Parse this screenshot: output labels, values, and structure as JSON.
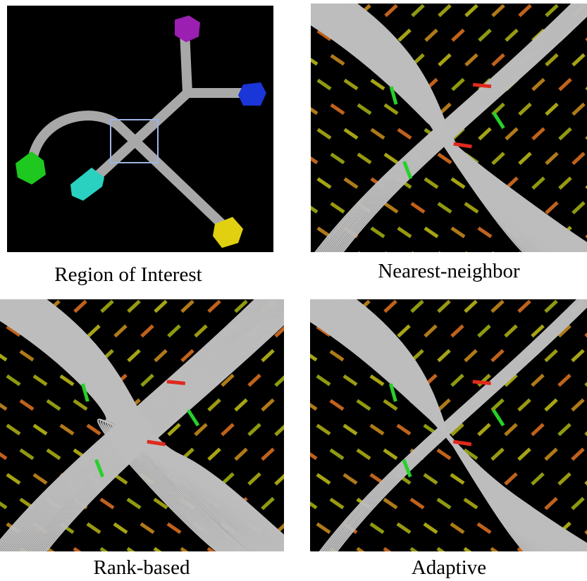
{
  "panels": [
    {
      "caption": "Region of Interest"
    },
    {
      "caption": "Nearest-neighbor"
    },
    {
      "caption": "Rank-based"
    },
    {
      "caption": "Adaptive"
    }
  ]
}
